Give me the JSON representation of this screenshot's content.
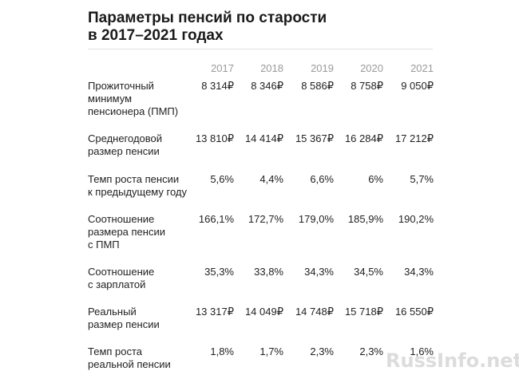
{
  "title_lines": [
    "Параметры пенсий по старости",
    "в 2017–2021 годах"
  ],
  "watermark": "RussInfo.net",
  "chart_data": {
    "type": "table",
    "title": "Параметры пенсий по старости в 2017–2021 годах",
    "columns": [
      "2017",
      "2018",
      "2019",
      "2020",
      "2021"
    ],
    "rows": [
      {
        "label_lines": [
          "Прожиточный",
          "минимум",
          "пенсионера (ПМП)"
        ],
        "values": [
          "8 314₽",
          "8 346₽",
          "8 586₽",
          "8 758₽",
          "9 050₽"
        ]
      },
      {
        "label_lines": [
          "Среднегодовой",
          "размер пенсии"
        ],
        "values": [
          "13 810₽",
          "14 414₽",
          "15 367₽",
          "16 284₽",
          "17 212₽"
        ]
      },
      {
        "label_lines": [
          "Темп роста пенсии",
          "к предыдущему году"
        ],
        "values": [
          "5,6%",
          "4,4%",
          "6,6%",
          "6%",
          "5,7%"
        ]
      },
      {
        "label_lines": [
          "Соотношение",
          "размера пенсии",
          "с ПМП"
        ],
        "values": [
          "166,1%",
          "172,7%",
          "179,0%",
          "185,9%",
          "190,2%"
        ]
      },
      {
        "label_lines": [
          "Соотношение",
          "с зарплатой"
        ],
        "values": [
          "35,3%",
          "33,8%",
          "34,3%",
          "34,5%",
          "34,3%"
        ]
      },
      {
        "label_lines": [
          "Реальный",
          "размер пенсии"
        ],
        "values": [
          "13 317₽",
          "14 049₽",
          "14 748₽",
          "15 718₽",
          "16 550₽"
        ]
      },
      {
        "label_lines": [
          "Темп роста",
          "реальной пенсии"
        ],
        "values": [
          "1,8%",
          "1,7%",
          "2,3%",
          "2,3%",
          "1,6%"
        ]
      }
    ]
  }
}
